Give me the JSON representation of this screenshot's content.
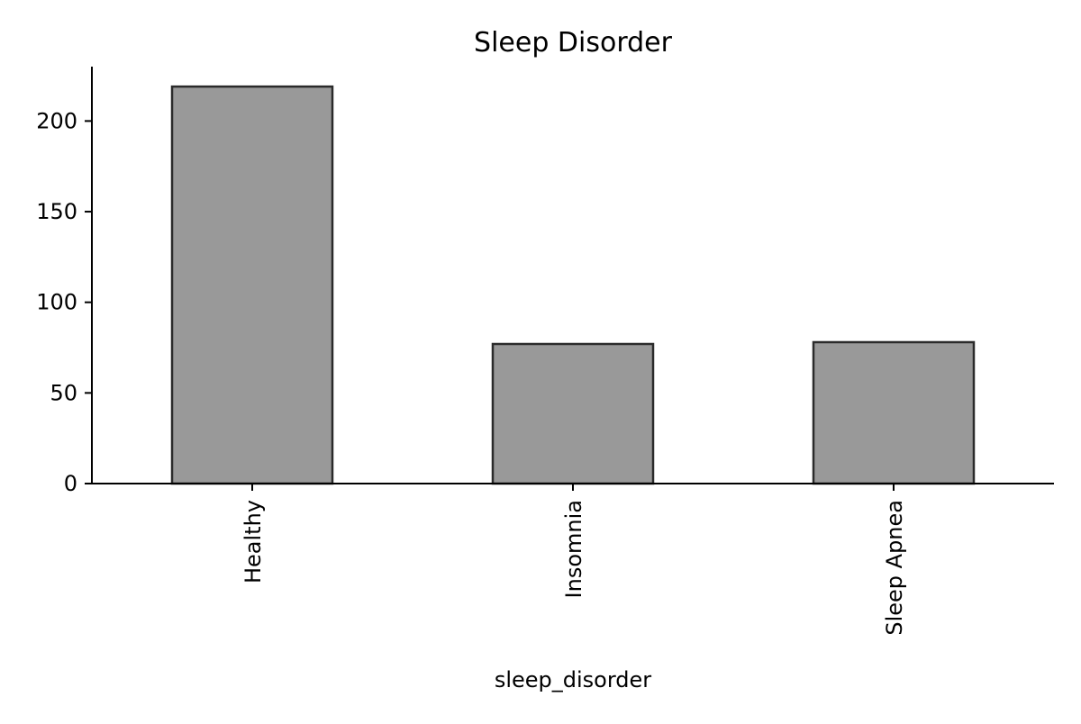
{
  "chart_data": {
    "type": "bar",
    "title": "Sleep Disorder",
    "xlabel": "sleep_disorder",
    "ylabel": "",
    "categories": [
      "Healthy",
      "Insomnia",
      "Sleep Apnea"
    ],
    "values": [
      219,
      77,
      78
    ],
    "ylim": [
      0,
      230
    ],
    "yticks": [
      0,
      50,
      100,
      150,
      200
    ],
    "grid": false,
    "legend": "none",
    "colors": {
      "bar_fill": "#999999",
      "bar_edge": "#2b2b2b",
      "axis": "#000000"
    }
  }
}
